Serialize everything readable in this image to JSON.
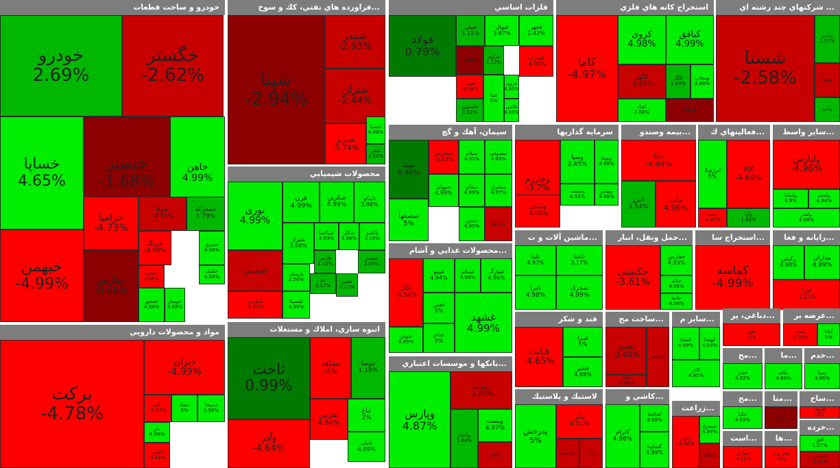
{
  "app": {
    "title": "Market treemap"
  },
  "colors": {
    "strong_green": "#00ee00",
    "medium_green": "#00b800",
    "dark_green": "#007a00",
    "strong_red": "#ff0000",
    "medium_red": "#c70000",
    "dark_red": "#8c0000",
    "header_bg": "#7d7d7d"
  },
  "sectors": [
    {
      "title": "خودرو و ساخت قطعات",
      "tiles": [
        {
          "name": "خودرو",
          "change": "2.69%"
        },
        {
          "name": "خگستر",
          "change": "-2.62%"
        },
        {
          "name": "خساپا",
          "change": "4.65%"
        },
        {
          "name": "ختصنر",
          "change": "-1.68%"
        },
        {
          "name": "خاهن",
          "change": "4.99%"
        },
        {
          "name": "خبهمن",
          "change": "-4.99%"
        },
        {
          "name": "خزامیا",
          "change": "-4.73%"
        },
        {
          "name": "خنوقا",
          "change": "-3.32%"
        },
        {
          "name": "خمحرکه",
          "change": "1.79%"
        },
        {
          "name": "خپارس",
          "change": "-0.66%"
        },
        {
          "name": "خرینگ",
          "change": "-4.99%"
        },
        {
          "name": "خشرق",
          "change": "4.96%"
        },
        {
          "name": "خکمک",
          "change": "4.99%"
        },
        {
          "name": "خمحور",
          "change": "4.99%"
        },
        {
          "name": "خوساز",
          "change": "4.88%"
        },
        {
          "name": "خکاوه",
          "change": "3.46%"
        }
      ]
    },
    {
      "title": "...فراورده هاي نفتي، كك و سوخ",
      "tiles": [
        {
          "name": "شپنا",
          "change": "-2.94%"
        },
        {
          "name": "شبندر",
          "change": "-2.93%"
        },
        {
          "name": "شتران",
          "change": "-2.44%"
        },
        {
          "name": "شبریز",
          "change": "-3.74%"
        },
        {
          "name": "شسپا",
          "change": "4.98%"
        },
        {
          "name": "شفن",
          "change": "1.32%"
        },
        {
          "name": "شنفت",
          "change": ""
        }
      ]
    },
    {
      "title": "محصولات شيميايي",
      "tiles": [
        {
          "name": "نوری",
          "change": "4.99%"
        },
        {
          "name": "فرن",
          "change": "4.99%"
        },
        {
          "name": "شکربن",
          "change": "4.99%"
        },
        {
          "name": "تاپیکو",
          "change": "3.86%"
        },
        {
          "name": "شیراز",
          "change": "3.58%"
        },
        {
          "name": "شپاکسا",
          "change": "4.99%"
        },
        {
          "name": "شکلر",
          "change": "4.98%"
        },
        {
          "name": "پاکشو",
          "change": "2.18%"
        },
        {
          "name": "شپدیس",
          "change": ""
        },
        {
          "name": "فارس",
          "change": "1.13%"
        },
        {
          "name": "پارسان",
          "change": "2.56%"
        },
        {
          "name": "جم",
          "change": "2.17%"
        },
        {
          "name": "شفن",
          "change": "0.17%"
        },
        {
          "name": "شغدیر",
          "change": "2.85%"
        },
        {
          "name": "شسینا",
          "change": "4.99%"
        },
        {
          "name": "شفارس",
          "change": "-4.99%"
        }
      ]
    },
    {
      "title": "انبوه سازي، املاك و مستغلات",
      "tiles": [
        {
          "name": "ثاخت",
          "change": "0.99%"
        },
        {
          "name": "ثشاهد",
          "change": "-5%"
        },
        {
          "name": "ثنوسا",
          "change": "1.18%"
        },
        {
          "name": "ثباغ",
          "change": "2%"
        },
        {
          "name": "ثفارس",
          "change": "4.94%"
        },
        {
          "name": "ثامان",
          "change": "4.09%"
        },
        {
          "name": "وآذر",
          "change": "-4.64%"
        }
      ]
    },
    {
      "title": "مواد و محصولات دارويي",
      "tiles": [
        {
          "name": "برکت",
          "change": "-4.78%"
        },
        {
          "name": "دیران",
          "change": "-4.99%"
        },
        {
          "name": "دالبر",
          "change": "-4.97%"
        },
        {
          "name": "دتماد",
          "change": "5%"
        },
        {
          "name": "دسبحا",
          "change": "4.99%"
        },
        {
          "name": "دلر",
          "change": "4.99%"
        },
        {
          "name": "دکیمی",
          "change": "-4.16%"
        }
      ]
    },
    {
      "title": "فلزات اساسي",
      "tiles": [
        {
          "name": "فولاد",
          "change": "0.79%"
        },
        {
          "name": "فملی",
          "change": "1.11%"
        },
        {
          "name": "فنوال",
          "change": "3.87%"
        },
        {
          "name": "فجهز",
          "change": "2.42%"
        },
        {
          "name": "فخاس",
          "change": ""
        },
        {
          "name": "فزاوی",
          "change": "1.12%"
        },
        {
          "name": "فسرب",
          "change": "-4.92%"
        },
        {
          "name": "فنورد",
          "change": "-4.08%"
        },
        {
          "name": "فاسمین",
          "change": "1.52%"
        },
        {
          "name": "فروی",
          "change": "4.95%"
        },
        {
          "name": "فلامی",
          "change": "4.03%"
        },
        {
          "name": "فیتا",
          "change": "5%"
        }
      ]
    },
    {
      "title": "استخراج كانه هاي فلزي",
      "tiles": [
        {
          "name": "کاما",
          "change": "-4.97%"
        },
        {
          "name": "کروی",
          "change": "4.98%"
        },
        {
          "name": "کبافق",
          "change": "4.99%"
        },
        {
          "name": "کگهر",
          "change": "-0.83%"
        },
        {
          "name": "کگل",
          "change": "1.83%"
        },
        {
          "name": "ومعادن",
          "change": "4.86%"
        },
        {
          "name": "کچاد",
          "change": "2.66%"
        },
        {
          "name": "کمنگنز",
          "change": ""
        }
      ]
    },
    {
      "title": "... شركتهاي چند رشته اي",
      "tiles": [
        {
          "name": "شستا",
          "change": "-2.58%"
        },
        {
          "name": "وغدیر",
          "change": "1.57%"
        },
        {
          "name": "وصنا",
          "change": ""
        },
        {
          "name": "وامید",
          "change": ""
        }
      ]
    },
    {
      "title": "سيمان، آهك و گچ",
      "tiles": [
        {
          "name": "سپنا",
          "change": "0.46%"
        },
        {
          "name": "سفارس",
          "change": "-3.33%"
        },
        {
          "name": "سیلام",
          "change": "4.95%"
        },
        {
          "name": "سصوفی",
          "change": "4.89%"
        },
        {
          "name": "سصفها",
          "change": "5%"
        },
        {
          "name": "سپهان",
          "change": "4.99%"
        },
        {
          "name": "سفانو",
          "change": "4.99%"
        },
        {
          "name": "سدور",
          "change": "4.95%"
        },
        {
          "name": "سشرق",
          "change": "4.97%"
        },
        {
          "name": "ساربیل",
          "change": ""
        }
      ]
    },
    {
      "title": "سرمايه گذاريها",
      "tiles": [
        {
          "name": "وخارزم",
          "change": "-3.7%"
        },
        {
          "name": "وسپا",
          "change": "2.45%"
        },
        {
          "name": "ونوما",
          "change": "4.98%"
        },
        {
          "name": "وسکی",
          "change": "-4.09%"
        },
        {
          "name": "وصنعت",
          "change": "4.93%"
        },
        {
          "name": "وبهمن",
          "change": "4.98%"
        }
      ]
    },
    {
      "title": "...بيمه وصندو",
      "tiles": [
        {
          "name": "دانا",
          "change": "-4.94%"
        },
        {
          "name": "البرز",
          "change": "1.54%"
        },
        {
          "name": "ملت",
          "change": "4.96%"
        }
      ]
    },
    {
      "title": "...فعاليتهاي ك",
      "tiles": [
        {
          "name": "انرژی3",
          "change": "5%"
        },
        {
          "name": "کالا",
          "change": "-4.69%"
        },
        {
          "name": "سمت",
          "change": "-4.67%"
        },
        {
          "name": "وآوا",
          "change": "1.45%"
        }
      ]
    },
    {
      "title": "...ساير واسط",
      "tiles": [
        {
          "name": "ولپارس",
          "change": "-4.96%"
        },
        {
          "name": "ولصنم",
          "change": "4.94%"
        },
        {
          "name": "ولسایا",
          "change": "4.9%"
        },
        {
          "name": "ولغدر",
          "change": "4.98%"
        }
      ]
    },
    {
      "title": "...محصولات غذايي و آشام",
      "tiles": [
        {
          "name": "غگل",
          "change": "-4.54%"
        },
        {
          "name": "غبینو",
          "change": "4.94%"
        },
        {
          "name": "غسالم",
          "change": "4.98%"
        },
        {
          "name": "غمارگ",
          "change": "4.96%"
        },
        {
          "name": "غچین",
          "change": "5%"
        },
        {
          "name": "غنوش",
          "change": "4.99%"
        },
        {
          "name": "غدام",
          "change": "5%"
        },
        {
          "name": "غشهد",
          "change": "4.99%"
        }
      ]
    },
    {
      "title": "...ماشين آلات و ت",
      "tiles": [
        {
          "name": "تکما",
          "change": "4.97%"
        },
        {
          "name": "تکشا",
          "change": "3.17%"
        },
        {
          "name": "تایرا",
          "change": "4.98%"
        },
        {
          "name": "تمحرک",
          "change": "4.99%"
        }
      ]
    },
    {
      "title": "...حمل ونقل، انبار",
      "tiles": [
        {
          "name": "حکشتی",
          "change": "-3.61%"
        },
        {
          "name": "حفارس",
          "change": "4.93%"
        },
        {
          "name": "حتاید",
          "change": "4.98%"
        },
        {
          "name": "حآسا",
          "change": "4.96%"
        }
      ]
    },
    {
      "title": "...استخراج سا",
      "tiles": [
        {
          "name": "کماسه",
          "change": "-4.99%"
        }
      ]
    },
    {
      "title": "...رايانه و فعا",
      "tiles": [
        {
          "name": "رکیش",
          "change": "4.98%"
        },
        {
          "name": "مداران",
          "change": "4.99%"
        },
        {
          "name": "افرا",
          "change": "-2.21%"
        },
        {
          "name": "رتاپ",
          "change": "4.47%"
        }
      ]
    },
    {
      "title": "قند و شكر",
      "tiles": [
        {
          "name": "قنابت",
          "change": "-4.65%"
        },
        {
          "name": "قپیرا",
          "change": "5%"
        },
        {
          "name": "قشیر",
          "change": "4.99%"
        }
      ]
    },
    {
      "title": "...ساخت مح",
      "tiles": [
        {
          "name": "بجدن",
          "change": "-3.62%"
        },
        {
          "name": "بالبر",
          "change": "-3.06%"
        },
        {
          "name": "بترانس",
          "change": ""
        }
      ]
    },
    {
      "title": "...ساير م",
      "tiles": [
        {
          "name": "کسایا",
          "change": "4.99%"
        },
        {
          "name": "کهمدا",
          "change": "4.93%"
        },
        {
          "name": "کاذر",
          "change": "4.95%"
        }
      ]
    },
    {
      "title": "...دباغي، پر",
      "tiles": [
        {
          "name": "ملی",
          "change": "-5%"
        }
      ]
    },
    {
      "title": "...عرضه بر",
      "tiles": [
        {
          "name": "بفجر",
          "change": "-3.56%"
        },
        {
          "name": "آبادا",
          "change": "5%"
        }
      ]
    },
    {
      "title": "...مح",
      "tiles": [
        {
          "name": "جفبر",
          "change": "4.92%"
        }
      ]
    },
    {
      "title": "...ما",
      "tiles": [
        {
          "name": "بکام",
          "change": "4.84%"
        }
      ]
    },
    {
      "title": "...خدم",
      "tiles": [
        {
          "name": "رمپنا",
          "change": "4.96%"
        }
      ]
    },
    {
      "title": "...بانكها و موسسات اعتباري",
      "tiles": [
        {
          "name": "وپارس",
          "change": "4.87%"
        },
        {
          "name": "وبوپ",
          "change": "-2.87%"
        },
        {
          "name": "وپاسار",
          "change": "1.64%"
        },
        {
          "name": "وبست",
          "change": "4.97%"
        },
        {
          "name": "وخاور",
          "change": ""
        }
      ]
    },
    {
      "title": "لاستيك و پلاستيك",
      "tiles": [
        {
          "name": "پدرخش",
          "change": "5%"
        },
        {
          "name": "پتاير",
          "change": "4.51%"
        },
        {
          "name": "پکرمان",
          "change": ""
        },
        {
          "name": "پاسا",
          "change": ""
        }
      ]
    },
    {
      "title": "...كاشي و",
      "tiles": [
        {
          "name": "کترام",
          "change": "4.98%"
        },
        {
          "name": "کحافظ",
          "change": "4.99%"
        },
        {
          "name": "کساوه",
          "change": "4.99%"
        }
      ]
    },
    {
      "title": "...زراعت",
      "tiles": [
        {
          "name": "زکوثر",
          "change": "-4.46%"
        },
        {
          "name": "سیمرغ",
          "change": "4.99%"
        },
        {
          "name": "زشگزا",
          "change": ""
        }
      ]
    },
    {
      "title": "...مح",
      "tiles": [
        {
          "name": "حکبا",
          "change": "4.95%"
        }
      ]
    },
    {
      "title": "...منا",
      "tiles": [
        {
          "name": "مناپ",
          "change": ""
        }
      ]
    },
    {
      "title": "...ساخ",
      "tiles": [
        {
          "name": "لپارس",
          "change": "-5%"
        }
      ]
    },
    {
      "title": "...است",
      "tiles": [
        {
          "name": "حفاری",
          "change": "-4.15%"
        }
      ]
    },
    {
      "title": "...ها",
      "tiles": [
        {
          "name": "های وب",
          "change": "-5%"
        }
      ]
    },
    {
      "title": "...خرده",
      "tiles": [
        {
          "name": "افق",
          "change": "1.57%"
        },
        {
          "name": "کطبس",
          "change": "-1.81%"
        }
      ]
    }
  ]
}
